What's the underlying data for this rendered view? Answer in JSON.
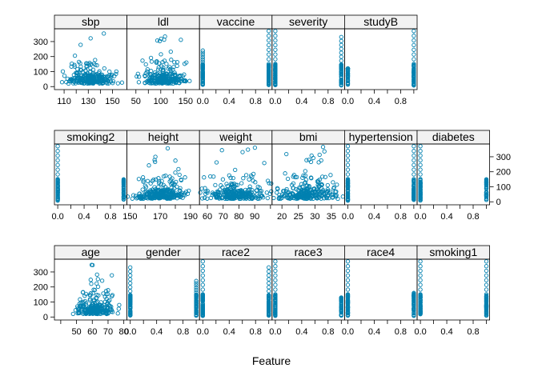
{
  "chart_data": {
    "type": "scatter",
    "layout": "lattice-scatterplot-matrix",
    "title": "",
    "xlabel": "Feature",
    "ylabel": "",
    "point_color": "#0080b0",
    "strip_color": "#f2f2f2",
    "y_range": [
      -20,
      385
    ],
    "y_ticks": [
      0,
      100,
      200,
      300
    ],
    "rows": [
      {
        "y_axis_side": "left",
        "x_axis_side": "bottom",
        "panels": [
          {
            "name": "sbp",
            "type": "continuous",
            "x_range": [
              102,
              162
            ],
            "x_ticks": [
              110,
              120,
              130,
              140,
              150
            ],
            "x_tick_labels": [
              "110",
              "",
              "130",
              "",
              "150"
            ],
            "center": 132,
            "spread": 9
          },
          {
            "name": "ldl",
            "type": "continuous",
            "x_range": [
              32,
              178
            ],
            "x_ticks": [
              50,
              75,
              100,
              125,
              150
            ],
            "x_tick_labels": [
              "50",
              "",
              "100",
              "",
              "150"
            ],
            "center": 105,
            "spread": 22
          },
          {
            "name": "vaccine",
            "type": "binary",
            "x_range": [
              -0.05,
              1.05
            ],
            "x_ticks": [
              0,
              0.2,
              0.4,
              0.6,
              0.8,
              1
            ],
            "x_tick_labels": [
              "0.0",
              "",
              "0.4",
              "",
              "0.8",
              ""
            ],
            "max0": 240,
            "max1": 370
          },
          {
            "name": "severity",
            "type": "binary",
            "x_range": [
              -0.05,
              1.05
            ],
            "x_ticks": [
              0,
              0.2,
              0.4,
              0.6,
              0.8,
              1
            ],
            "x_tick_labels": [
              "0.0",
              "",
              "0.4",
              "",
              "0.8",
              ""
            ],
            "max0": 370,
            "max1": 330
          },
          {
            "name": "studyB",
            "type": "binary",
            "x_range": [
              -0.05,
              1.05
            ],
            "x_ticks": [
              0,
              0.2,
              0.4,
              0.6,
              0.8,
              1
            ],
            "x_tick_labels": [
              "0.0",
              "",
              "0.4",
              "",
              "0.8",
              ""
            ],
            "max0": 120,
            "max1": 370
          }
        ]
      },
      {
        "y_axis_side": "right",
        "x_axis_side": "bottom",
        "panels": [
          {
            "name": "smoking2",
            "type": "binary",
            "x_range": [
              -0.05,
              1.05
            ],
            "x_ticks": [
              0,
              0.2,
              0.4,
              0.6,
              0.8,
              1
            ],
            "x_tick_labels": [
              "0.0",
              "",
              "0.4",
              "",
              "0.8",
              ""
            ],
            "max0": 370,
            "max1": 150
          },
          {
            "name": "height",
            "type": "continuous",
            "x_range": [
              148,
              196
            ],
            "x_ticks": [
              150,
              160,
              170,
              180,
              190
            ],
            "x_tick_labels": [
              "150",
              "",
              "170",
              "",
              "190"
            ],
            "center": 170,
            "spread": 8
          },
          {
            "name": "weight",
            "type": "continuous",
            "x_range": [
              55,
              101
            ],
            "x_ticks": [
              60,
              70,
              80,
              90,
              100
            ],
            "x_tick_labels": [
              "60",
              "70",
              "80",
              "90",
              ""
            ],
            "center": 78,
            "spread": 9
          },
          {
            "name": "bmi",
            "type": "continuous",
            "x_range": [
              17,
              39
            ],
            "x_ticks": [
              20,
              25,
              30,
              35
            ],
            "x_tick_labels": [
              "20",
              "25",
              "30",
              "35"
            ],
            "center": 28,
            "spread": 4
          },
          {
            "name": "hypertension",
            "type": "binary",
            "x_range": [
              -0.05,
              1.05
            ],
            "x_ticks": [
              0,
              0.2,
              0.4,
              0.6,
              0.8,
              1
            ],
            "x_tick_labels": [
              "0.0",
              "",
              "0.4",
              "",
              "0.8",
              ""
            ],
            "max0": 370,
            "max1": 370
          },
          {
            "name": "diabetes",
            "type": "binary",
            "x_range": [
              -0.05,
              1.05
            ],
            "x_ticks": [
              0,
              0.2,
              0.4,
              0.6,
              0.8,
              1
            ],
            "x_tick_labels": [
              "0.0",
              "",
              "0.4",
              "",
              "0.8",
              ""
            ],
            "max0": 370,
            "max1": 150
          }
        ]
      },
      {
        "y_axis_side": "left",
        "x_axis_side": "bottom",
        "panels": [
          {
            "name": "age",
            "type": "continuous",
            "x_range": [
              36,
              82
            ],
            "x_ticks": [
              40,
              50,
              60,
              70,
              80
            ],
            "x_tick_labels": [
              "",
              "50",
              "60",
              "70",
              "80"
            ],
            "center": 62,
            "spread": 6
          },
          {
            "name": "gender",
            "type": "binary",
            "x_range": [
              -0.05,
              1.05
            ],
            "x_ticks": [
              0,
              0.2,
              0.4,
              0.6,
              0.8,
              1
            ],
            "x_tick_labels": [
              "0.0",
              "",
              "0.4",
              "",
              "0.8",
              ""
            ],
            "max0": 330,
            "max1": 240
          },
          {
            "name": "race2",
            "type": "binary",
            "x_range": [
              -0.05,
              1.05
            ],
            "x_ticks": [
              0,
              0.2,
              0.4,
              0.6,
              0.8,
              1
            ],
            "x_tick_labels": [
              "0.0",
              "",
              "0.4",
              "",
              "0.8",
              ""
            ],
            "max0": 370,
            "max1": 330
          },
          {
            "name": "race3",
            "type": "binary",
            "x_range": [
              -0.05,
              1.05
            ],
            "x_ticks": [
              0,
              0.2,
              0.4,
              0.6,
              0.8,
              1
            ],
            "x_tick_labels": [
              "0.0",
              "",
              "0.4",
              "",
              "0.8",
              ""
            ],
            "max0": 370,
            "max1": 130
          },
          {
            "name": "race4",
            "type": "binary",
            "x_range": [
              -0.05,
              1.05
            ],
            "x_ticks": [
              0,
              0.2,
              0.4,
              0.6,
              0.8,
              1
            ],
            "x_tick_labels": [
              "0.0",
              "",
              "0.4",
              "",
              "0.8",
              ""
            ],
            "max0": 370,
            "max1": 160
          },
          {
            "name": "smoking1",
            "type": "binary",
            "x_range": [
              -0.05,
              1.05
            ],
            "x_ticks": [
              0,
              0.2,
              0.4,
              0.6,
              0.8,
              1
            ],
            "x_tick_labels": [
              "0.0",
              "",
              "0.4",
              "",
              "0.8",
              ""
            ],
            "max0": 370,
            "max1": 370
          }
        ]
      }
    ]
  }
}
